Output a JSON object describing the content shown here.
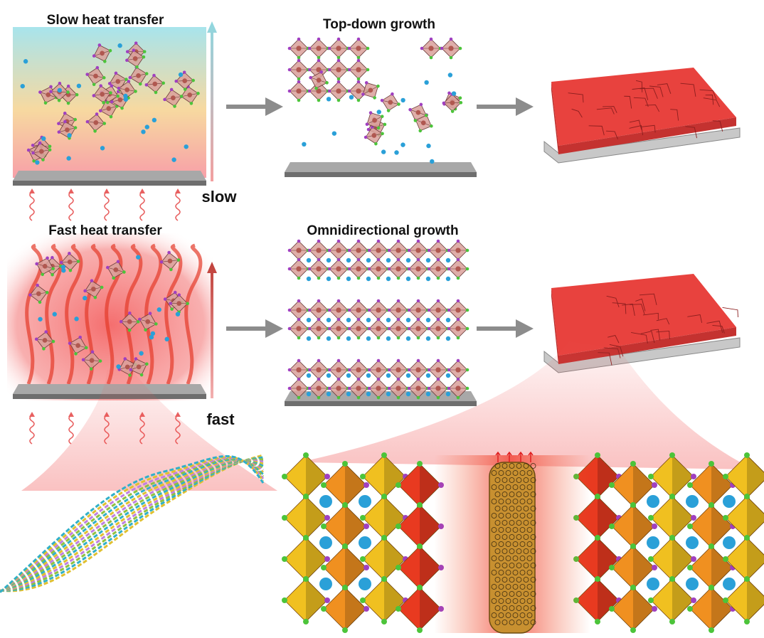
{
  "labels": {
    "slow_title": "Slow heat transfer",
    "topdown_title": "Top-down growth",
    "slow": "slow",
    "fast_title": "Fast heat transfer",
    "omni_title": "Omnidirectional growth",
    "fast": "fast"
  },
  "colors": {
    "slow_gradient_top": "#a8e4ec",
    "slow_gradient_mid": "#f7d9a0",
    "slow_gradient_bottom": "#f7a0a8",
    "fast_glow": "#f24a4a",
    "octahedron": "#d9a09a",
    "cation": "#2aa0d8",
    "halide_green": "#4cc43a",
    "halide_purple": "#a040c0",
    "film": "#e8423e",
    "substrate": "#8a8a8a",
    "process_arrow": "#8c8c8c",
    "perovskite_yellow": "#f0c020",
    "perovskite_red": "#e83a20"
  }
}
